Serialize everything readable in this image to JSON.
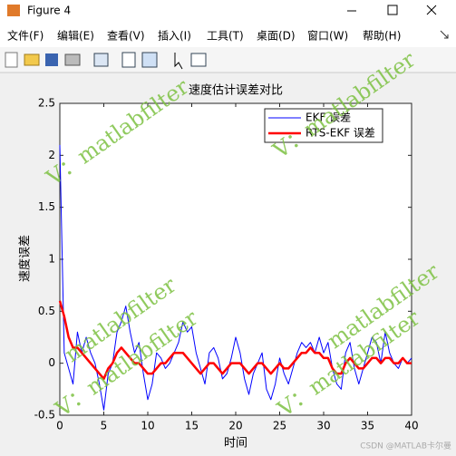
{
  "window": {
    "title": "Figure 4",
    "menu": [
      "文件(F)",
      "编辑(E)",
      "查看(V)",
      "插入(I)",
      "工具(T)",
      "桌面(D)",
      "窗口(W)",
      "帮助(H)"
    ]
  },
  "watermarks": [
    "V：matlabfilter",
    "V：matlabfilter",
    "matlabfilter",
    "matlabfilter",
    "V：matlabfilter",
    "V：matlabfilter"
  ],
  "footer": "CSDN @MATLAB卡尔曼",
  "chart_data": {
    "type": "line",
    "title": "速度估计误差对比",
    "xlabel": "时间",
    "ylabel": "速度误差",
    "x": [
      0,
      0.5,
      1,
      1.5,
      2,
      2.5,
      3,
      3.5,
      4,
      4.5,
      5,
      5.5,
      6,
      6.5,
      7,
      7.5,
      8,
      8.5,
      9,
      9.5,
      10,
      10.5,
      11,
      11.5,
      12,
      12.5,
      13,
      13.5,
      14,
      14.5,
      15,
      15.5,
      16,
      16.5,
      17,
      17.5,
      18,
      18.5,
      19,
      19.5,
      20,
      20.5,
      21,
      21.5,
      22,
      22.5,
      23,
      23.5,
      24,
      24.5,
      25,
      25.5,
      26,
      26.5,
      27,
      27.5,
      28,
      28.5,
      29,
      29.5,
      30,
      30.5,
      31,
      31.5,
      32,
      32.5,
      33,
      33.5,
      34,
      34.5,
      35,
      35.5,
      36,
      36.5,
      37,
      37.5,
      38,
      38.5,
      39,
      39.5,
      40
    ],
    "series": [
      {
        "name": "EKF 误差",
        "color": "#0000ff",
        "width": 1,
        "values": [
          2.1,
          0.1,
          -0.05,
          -0.2,
          0.3,
          0.1,
          0.25,
          0.1,
          0.0,
          -0.2,
          -0.45,
          -0.1,
          0.0,
          0.3,
          0.4,
          0.55,
          0.3,
          0.1,
          0.2,
          -0.1,
          -0.35,
          -0.2,
          0.1,
          0.05,
          -0.05,
          0.0,
          0.1,
          0.2,
          0.4,
          0.3,
          0.35,
          0.1,
          -0.05,
          -0.2,
          0.1,
          0.15,
          0.05,
          -0.15,
          -0.1,
          0.05,
          0.25,
          0.1,
          -0.15,
          -0.3,
          -0.1,
          0.0,
          0.1,
          -0.25,
          -0.35,
          -0.2,
          0.05,
          -0.1,
          -0.2,
          -0.05,
          0.1,
          0.2,
          0.15,
          0.2,
          0.1,
          0.25,
          0.1,
          0.2,
          -0.05,
          -0.2,
          -0.25,
          0.1,
          0.2,
          -0.05,
          -0.2,
          -0.05,
          0.1,
          0.25,
          0.2,
          0.0,
          0.3,
          0.1,
          0.0,
          -0.05,
          0.05,
          0.0,
          0.05
        ]
      },
      {
        "name": "RTS-EKF 误差",
        "color": "#ff0000",
        "width": 2.5,
        "values": [
          0.6,
          0.45,
          0.25,
          0.15,
          0.15,
          0.1,
          0.05,
          0.0,
          -0.05,
          -0.1,
          -0.15,
          -0.05,
          0.0,
          0.1,
          0.15,
          0.1,
          0.05,
          0.0,
          0.0,
          -0.05,
          -0.1,
          -0.1,
          -0.05,
          0.0,
          0.0,
          0.05,
          0.1,
          0.1,
          0.1,
          0.05,
          0.0,
          -0.05,
          -0.1,
          -0.05,
          0.0,
          0.0,
          -0.05,
          -0.1,
          -0.05,
          0.0,
          0.0,
          0.0,
          -0.05,
          -0.1,
          -0.05,
          0.0,
          0.0,
          -0.05,
          -0.1,
          -0.05,
          0.0,
          -0.05,
          -0.05,
          0.0,
          0.05,
          0.1,
          0.1,
          0.15,
          0.1,
          0.1,
          0.05,
          0.05,
          -0.05,
          -0.1,
          -0.1,
          0.0,
          0.05,
          0.0,
          -0.05,
          -0.05,
          0.0,
          0.05,
          0.05,
          0.0,
          0.05,
          0.05,
          0.0,
          0.0,
          0.05,
          0.0,
          0.0
        ]
      }
    ],
    "xlim": [
      0,
      40
    ],
    "xticks": [
      0,
      5,
      10,
      15,
      20,
      25,
      30,
      35,
      40
    ],
    "ylim": [
      -0.5,
      2.5
    ],
    "yticks": [
      -0.5,
      0,
      0.5,
      1,
      1.5,
      2,
      2.5
    ],
    "legend": "upper right"
  }
}
